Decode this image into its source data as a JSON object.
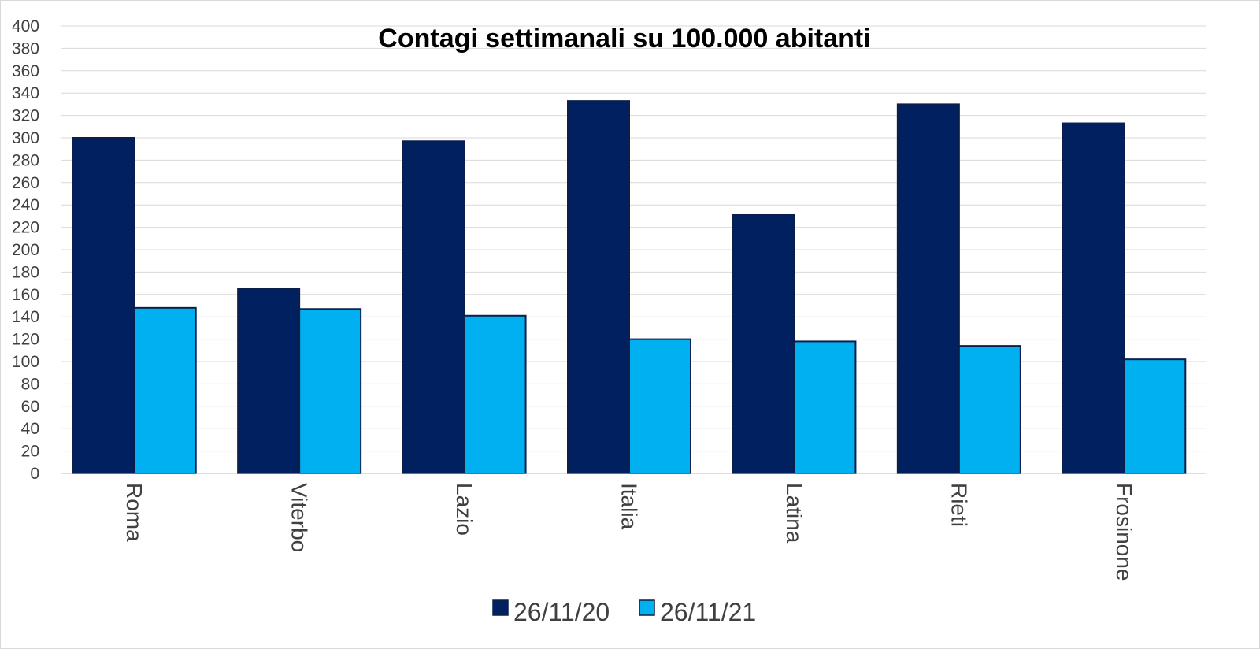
{
  "chart_data": {
    "type": "bar",
    "title": "Contagi settimanali su 100.000 abitanti",
    "xlabel": "",
    "ylabel": "",
    "ylim": [
      0,
      400
    ],
    "ytick_step": 20,
    "grid": true,
    "legend_position": "bottom",
    "categories": [
      "Roma",
      "Viterbo",
      "Lazio",
      "Italia",
      "Latina",
      "Rieti",
      "Frosinone"
    ],
    "series": [
      {
        "name": "26/11/20",
        "color": "#002060",
        "values": [
          300,
          165,
          297,
          333,
          231,
          330,
          313
        ]
      },
      {
        "name": "26/11/21",
        "color": "#00b0f0",
        "values": [
          148,
          147,
          141,
          120,
          118,
          114,
          102
        ]
      }
    ]
  }
}
